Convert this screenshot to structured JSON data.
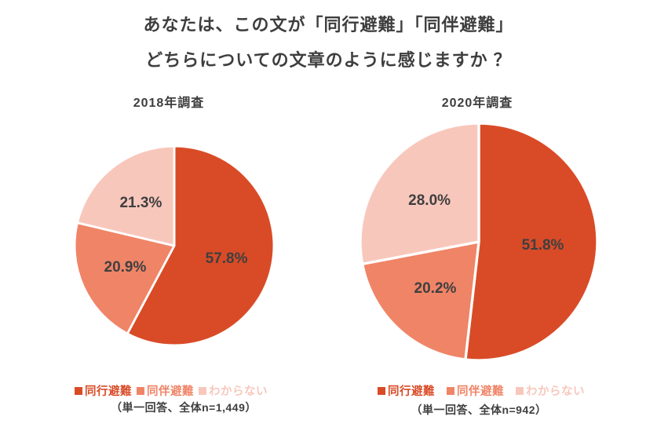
{
  "title": {
    "line1": "あなたは、この文が「同行避難」「同伴避難」",
    "line2": "どちらについての文章のように感じますか ？"
  },
  "colors": {
    "slice_primary": "#D94B27",
    "slice_secondary": "#F08467",
    "slice_tertiary": "#F8C7BC",
    "text_dark": "#3E3E3E"
  },
  "chart_data": [
    {
      "type": "pie",
      "title": "2018年調査",
      "labels": [
        "同行避難",
        "同伴避難",
        "わからない"
      ],
      "values": [
        57.8,
        20.9,
        21.3
      ],
      "value_labels": [
        "57.8%",
        "20.9%",
        "21.3%"
      ],
      "colors": [
        "#D94B27",
        "#F08467",
        "#F8C7BC"
      ],
      "start_angle_deg": 0,
      "direction": "clockwise",
      "legend_position": "bottom",
      "note": "（単一回答、全体n=1,449）"
    },
    {
      "type": "pie",
      "title": "2020年調査",
      "labels": [
        "同行避難",
        "同伴避難",
        "わからない"
      ],
      "values": [
        51.8,
        20.2,
        28.0
      ],
      "value_labels": [
        "51.8%",
        "20.2%",
        "28.0%"
      ],
      "colors": [
        "#D94B27",
        "#F08467",
        "#F8C7BC"
      ],
      "start_angle_deg": 0,
      "direction": "clockwise",
      "legend_position": "bottom",
      "note": "（単一回答、全体n=942）"
    }
  ]
}
